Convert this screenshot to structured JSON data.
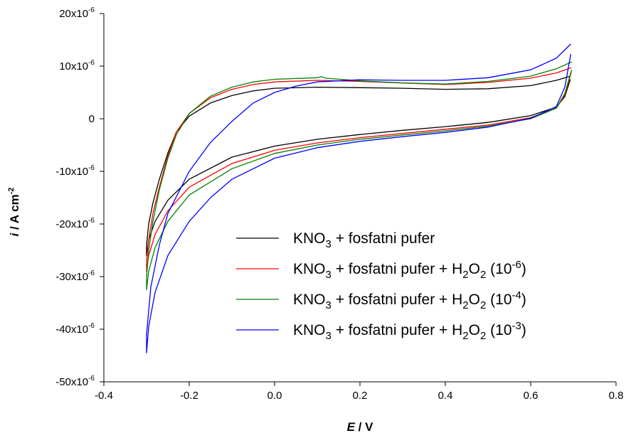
{
  "chart_data": {
    "type": "line",
    "title": "",
    "xlabel": {
      "italic": "E",
      "rest": " / V"
    },
    "ylabel": {
      "italic": "i",
      "rest": " / A cm",
      "sup": "-2"
    },
    "xlim": [
      -0.4,
      0.8
    ],
    "ylim": [
      -5e-05,
      2e-05
    ],
    "grid": false,
    "legend_position": "lower-right",
    "x_ticks": [
      {
        "value": -0.4,
        "label": "-0.4"
      },
      {
        "value": -0.2,
        "label": "-0.2"
      },
      {
        "value": 0.0,
        "label": "0.0"
      },
      {
        "value": 0.2,
        "label": "0.2"
      },
      {
        "value": 0.4,
        "label": "0.4"
      },
      {
        "value": 0.6,
        "label": "0.6"
      },
      {
        "value": 0.8,
        "label": "0.8"
      }
    ],
    "y_ticks": [
      {
        "value": 2e-05,
        "base": "20x10",
        "exp": "-6"
      },
      {
        "value": 1e-05,
        "base": "10x10",
        "exp": "-6"
      },
      {
        "value": 0,
        "base": "0",
        "exp": ""
      },
      {
        "value": -1e-05,
        "base": "-10x10",
        "exp": "-6"
      },
      {
        "value": -2e-05,
        "base": "-20x10",
        "exp": "-6"
      },
      {
        "value": -3e-05,
        "base": "-30x10",
        "exp": "-6"
      },
      {
        "value": -4e-05,
        "base": "-40x10",
        "exp": "-6"
      },
      {
        "value": -5e-05,
        "base": "-50x10",
        "exp": "-6"
      }
    ],
    "series": [
      {
        "color": "#000000",
        "legend": {
          "a": "KNO",
          "a_sub": "3",
          "b": " + fosfatni pufer",
          "has_h2o2": false
        },
        "points": [
          [
            0.693,
            7.5e-06
          ],
          [
            0.68,
            4.2e-06
          ],
          [
            0.66,
            2.2e-06
          ],
          [
            0.6,
            6e-07
          ],
          [
            0.5,
            -7e-07
          ],
          [
            0.4,
            -1.5e-06
          ],
          [
            0.3,
            -2.2e-06
          ],
          [
            0.2,
            -3e-06
          ],
          [
            0.1,
            -3.9e-06
          ],
          [
            0.0,
            -5.2e-06
          ],
          [
            -0.1,
            -7.3e-06
          ],
          [
            -0.2,
            -1.15e-05
          ],
          [
            -0.25,
            -1.55e-05
          ],
          [
            -0.28,
            -1.95e-05
          ],
          [
            -0.295,
            -2.3e-05
          ],
          [
            -0.3,
            -2.6e-05
          ],
          [
            -0.3,
            -2.4e-05
          ],
          [
            -0.295,
            -2e-05
          ],
          [
            -0.285,
            -1.6e-05
          ],
          [
            -0.27,
            -1.15e-05
          ],
          [
            -0.25,
            -6.5e-06
          ],
          [
            -0.23,
            -2.5e-06
          ],
          [
            -0.2,
            5e-07
          ],
          [
            -0.15,
            3e-06
          ],
          [
            -0.1,
            4.4e-06
          ],
          [
            -0.05,
            5.3e-06
          ],
          [
            0.0,
            5.8e-06
          ],
          [
            0.1,
            6e-06
          ],
          [
            0.2,
            5.9e-06
          ],
          [
            0.3,
            5.8e-06
          ],
          [
            0.4,
            5.6e-06
          ],
          [
            0.5,
            5.7e-06
          ],
          [
            0.6,
            6.3e-06
          ],
          [
            0.66,
            7.3e-06
          ],
          [
            0.693,
            8.1e-06
          ]
        ]
      },
      {
        "color": "#ff0000",
        "legend": {
          "a": "KNO",
          "a_sub": "3",
          "b": " + fosfatni pufer + H",
          "b_sub": "2",
          "c": "O",
          "c_sub": "2",
          "d": " (10",
          "d_sup": "-6",
          "e": ")",
          "has_h2o2": true
        },
        "points": [
          [
            0.695,
            8.8e-06
          ],
          [
            0.68,
            4.5e-06
          ],
          [
            0.66,
            2e-06
          ],
          [
            0.6,
            2e-07
          ],
          [
            0.5,
            -1.2e-06
          ],
          [
            0.4,
            -2e-06
          ],
          [
            0.3,
            -2.8e-06
          ],
          [
            0.2,
            -3.6e-06
          ],
          [
            0.1,
            -4.6e-06
          ],
          [
            0.0,
            -6e-06
          ],
          [
            -0.1,
            -8.5e-06
          ],
          [
            -0.2,
            -1.3e-05
          ],
          [
            -0.25,
            -1.75e-05
          ],
          [
            -0.28,
            -2.2e-05
          ],
          [
            -0.295,
            -2.6e-05
          ],
          [
            -0.3,
            -2.9e-05
          ],
          [
            -0.3,
            -2.7e-05
          ],
          [
            -0.295,
            -2.3e-05
          ],
          [
            -0.285,
            -1.8e-05
          ],
          [
            -0.27,
            -1.3e-05
          ],
          [
            -0.25,
            -7e-06
          ],
          [
            -0.23,
            -2.5e-06
          ],
          [
            -0.2,
            1e-06
          ],
          [
            -0.15,
            4e-06
          ],
          [
            -0.1,
            5.6e-06
          ],
          [
            -0.05,
            6.5e-06
          ],
          [
            0.0,
            7e-06
          ],
          [
            0.1,
            7.3e-06
          ],
          [
            0.2,
            7.1e-06
          ],
          [
            0.3,
            6.8e-06
          ],
          [
            0.4,
            6.5e-06
          ],
          [
            0.5,
            6.9e-06
          ],
          [
            0.6,
            7.7e-06
          ],
          [
            0.66,
            8.7e-06
          ],
          [
            0.695,
            9.7e-06
          ]
        ]
      },
      {
        "color": "#008000",
        "legend": {
          "a": "KNO",
          "a_sub": "3",
          "b": " + fosfatni pufer + H",
          "b_sub": "2",
          "c": "O",
          "c_sub": "2",
          "d": " (10",
          "d_sup": "-4",
          "e": ")",
          "has_h2o2": true
        },
        "points": [
          [
            0.696,
            9.3e-06
          ],
          [
            0.68,
            4.8e-06
          ],
          [
            0.66,
            2e-06
          ],
          [
            0.6,
            0.0
          ],
          [
            0.5,
            -1.4e-06
          ],
          [
            0.4,
            -2.3e-06
          ],
          [
            0.3,
            -3.1e-06
          ],
          [
            0.2,
            -3.9e-06
          ],
          [
            0.1,
            -5e-06
          ],
          [
            0.0,
            -6.6e-06
          ],
          [
            -0.1,
            -9.5e-06
          ],
          [
            -0.2,
            -1.45e-05
          ],
          [
            -0.25,
            -1.95e-05
          ],
          [
            -0.28,
            -2.45e-05
          ],
          [
            -0.295,
            -2.9e-05
          ],
          [
            -0.3,
            -3.25e-05
          ],
          [
            -0.3,
            -3e-05
          ],
          [
            -0.295,
            -2.5e-05
          ],
          [
            -0.285,
            -1.95e-05
          ],
          [
            -0.27,
            -1.35e-05
          ],
          [
            -0.25,
            -7.5e-06
          ],
          [
            -0.23,
            -3e-06
          ],
          [
            -0.2,
            1e-06
          ],
          [
            -0.15,
            4.3e-06
          ],
          [
            -0.1,
            6e-06
          ],
          [
            -0.05,
            7e-06
          ],
          [
            0.0,
            7.5e-06
          ],
          [
            0.1,
            7.8e-06
          ],
          [
            0.11,
            8e-06
          ],
          [
            0.12,
            7.7e-06
          ],
          [
            0.2,
            7.2e-06
          ],
          [
            0.3,
            6.8e-06
          ],
          [
            0.4,
            6.6e-06
          ],
          [
            0.5,
            7.1e-06
          ],
          [
            0.6,
            8.1e-06
          ],
          [
            0.66,
            9.5e-06
          ],
          [
            0.696,
            1.08e-05
          ]
        ]
      },
      {
        "color": "#0000ff",
        "legend": {
          "a": "KNO",
          "a_sub": "3",
          "b": " + fosfatni pufer + H",
          "b_sub": "2",
          "c": "O",
          "c_sub": "2",
          "d": " (10",
          "d_sup": "-3",
          "e": ")",
          "has_h2o2": true
        },
        "points": [
          [
            0.694,
            1.23e-05
          ],
          [
            0.68,
            6e-06
          ],
          [
            0.66,
            2.3e-06
          ],
          [
            0.6,
            1e-07
          ],
          [
            0.5,
            -1.6e-06
          ],
          [
            0.4,
            -2.6e-06
          ],
          [
            0.3,
            -3.4e-06
          ],
          [
            0.2,
            -4.3e-06
          ],
          [
            0.1,
            -5.5e-06
          ],
          [
            0.0,
            -7.5e-06
          ],
          [
            -0.1,
            -1.15e-05
          ],
          [
            -0.15,
            -1.5e-05
          ],
          [
            -0.2,
            -1.95e-05
          ],
          [
            -0.25,
            -2.6e-05
          ],
          [
            -0.28,
            -3.3e-05
          ],
          [
            -0.295,
            -3.95e-05
          ],
          [
            -0.3,
            -4.45e-05
          ],
          [
            -0.3,
            -4.1e-05
          ],
          [
            -0.29,
            -3.2e-05
          ],
          [
            -0.27,
            -2.4e-05
          ],
          [
            -0.25,
            -1.8e-05
          ],
          [
            -0.2,
            -1e-05
          ],
          [
            -0.15,
            -4.5e-06
          ],
          [
            -0.1,
            -5e-07
          ],
          [
            -0.05,
            3e-06
          ],
          [
            0.0,
            5e-06
          ],
          [
            0.05,
            6.2e-06
          ],
          [
            0.1,
            7e-06
          ],
          [
            0.2,
            7.4e-06
          ],
          [
            0.3,
            7.3e-06
          ],
          [
            0.4,
            7.3e-06
          ],
          [
            0.5,
            7.8e-06
          ],
          [
            0.6,
            9.3e-06
          ],
          [
            0.66,
            1.15e-05
          ],
          [
            0.694,
            1.42e-05
          ]
        ]
      }
    ]
  }
}
